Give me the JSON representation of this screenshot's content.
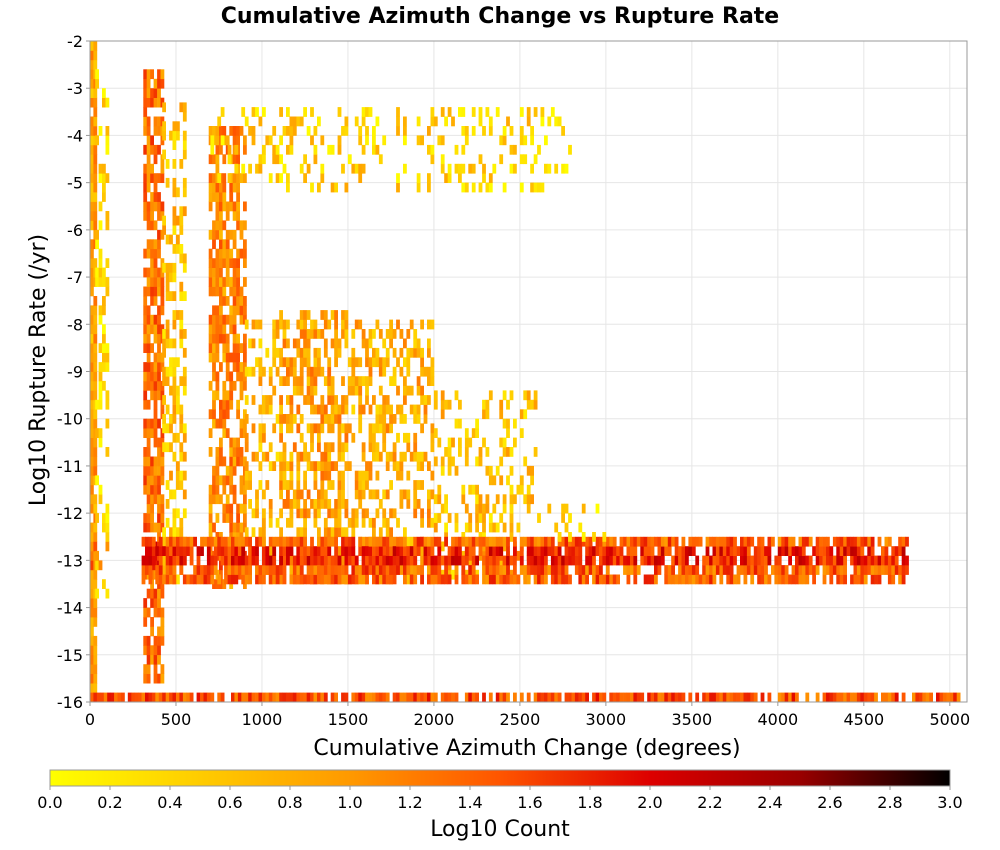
{
  "chart_data": {
    "type": "heatmap",
    "title": "Cumulative Azimuth Change vs Rupture Rate",
    "xlabel": "Cumulative Azimuth Change (degrees)",
    "ylabel": "Log10 Rupture Rate (/yr)",
    "xlim": [
      0,
      5100
    ],
    "ylim": [
      -16,
      -2
    ],
    "x_ticks": [
      0,
      500,
      1000,
      1500,
      2000,
      2500,
      3000,
      3500,
      4000,
      4500,
      5000
    ],
    "y_ticks": [
      -16,
      -15,
      -14,
      -13,
      -12,
      -11,
      -10,
      -9,
      -8,
      -7,
      -6,
      -5,
      -4,
      -3,
      -2
    ],
    "grid": true,
    "bin_width_x": 20,
    "bin_height_y": 0.2,
    "colorbar": {
      "label": "Log10 Count",
      "range": [
        0.0,
        3.0
      ],
      "ticks": [
        "0.0",
        "0.2",
        "0.4",
        "0.6",
        "0.8",
        "1.0",
        "1.2",
        "1.4",
        "1.6",
        "1.8",
        "2.0",
        "2.2",
        "2.4",
        "2.6",
        "2.8",
        "3.0"
      ],
      "colors": [
        "#ffff00",
        "#ffcc00",
        "#ff9900",
        "#ff5500",
        "#dd0000",
        "#990000",
        "#000000"
      ]
    },
    "clusters": [
      {
        "x_range": [
          0,
          30
        ],
        "y_range": [
          -15.8,
          -2.2
        ],
        "intensity": 0.9,
        "density": 0.95
      },
      {
        "x_range": [
          30,
          110
        ],
        "y_range": [
          -13.8,
          -2.8
        ],
        "intensity": 0.35,
        "density": 0.35
      },
      {
        "x_range": [
          310,
          420
        ],
        "y_range": [
          -15.6,
          -2.8
        ],
        "intensity": 1.3,
        "density": 0.75
      },
      {
        "x_range": [
          420,
          560
        ],
        "y_range": [
          -13.5,
          -3.5
        ],
        "intensity": 0.6,
        "density": 0.4
      },
      {
        "x_range": [
          690,
          900
        ],
        "y_range": [
          -13.6,
          -4.0
        ],
        "intensity": 1.1,
        "density": 0.7
      },
      {
        "x_range": [
          900,
          1100
        ],
        "y_range": [
          -13.5,
          -8.0
        ],
        "intensity": 0.7,
        "density": 0.35
      },
      {
        "x_range": [
          1100,
          1500
        ],
        "y_range": [
          -13.5,
          -7.8
        ],
        "intensity": 0.9,
        "density": 0.55
      },
      {
        "x_range": [
          1500,
          2000
        ],
        "y_range": [
          -13.5,
          -8.0
        ],
        "intensity": 0.8,
        "density": 0.45
      },
      {
        "x_range": [
          2000,
          2600
        ],
        "y_range": [
          -13.4,
          -9.5
        ],
        "intensity": 0.6,
        "density": 0.3
      },
      {
        "x_range": [
          700,
          2800
        ],
        "y_range": [
          -5.2,
          -3.5
        ],
        "intensity": 0.45,
        "density": 0.22
      },
      {
        "x_range": [
          300,
          4750
        ],
        "y_range": [
          -13.5,
          -12.6
        ],
        "intensity": 1.4,
        "density": 0.8
      },
      {
        "x_range": [
          2600,
          3000
        ],
        "y_range": [
          -12.6,
          -12.0
        ],
        "intensity": 0.4,
        "density": 0.2
      },
      {
        "x_range": [
          0,
          5100
        ],
        "y_range": [
          -16.0,
          -15.8
        ],
        "intensity": 1.5,
        "density": 0.85
      }
    ]
  }
}
